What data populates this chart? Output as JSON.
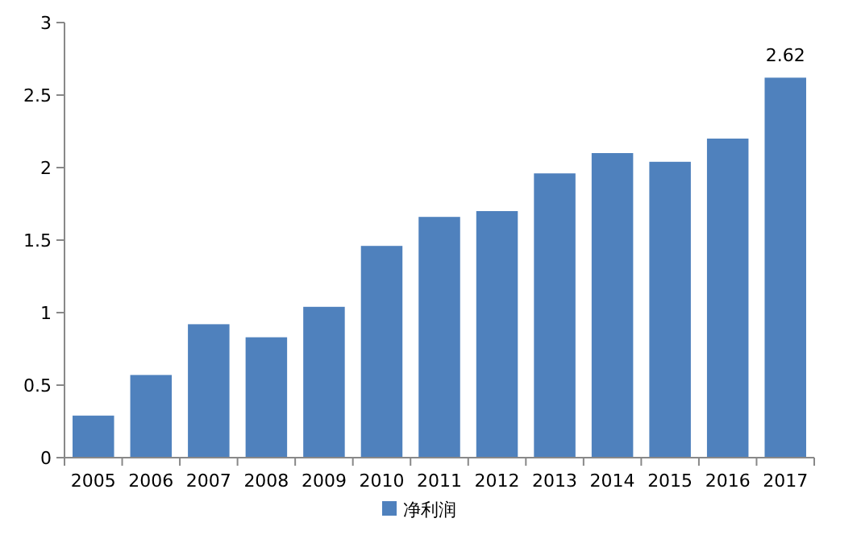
{
  "chart_data": {
    "type": "bar",
    "categories": [
      "2005",
      "2006",
      "2007",
      "2008",
      "2009",
      "2010",
      "2011",
      "2012",
      "2013",
      "2014",
      "2015",
      "2016",
      "2017"
    ],
    "series": [
      {
        "name": "净利润",
        "color": "#4f81bd",
        "values": [
          0.29,
          0.57,
          0.92,
          0.83,
          1.04,
          1.46,
          1.66,
          1.7,
          1.96,
          2.1,
          2.04,
          2.2,
          2.62
        ],
        "value_labels": [
          null,
          null,
          null,
          null,
          null,
          null,
          null,
          null,
          null,
          null,
          null,
          null,
          "2.62"
        ]
      }
    ],
    "ylim": [
      0,
      3
    ],
    "yticks": [
      0,
      0.5,
      1,
      1.5,
      2,
      2.5,
      3
    ],
    "legend": "bottom",
    "grid": false
  }
}
